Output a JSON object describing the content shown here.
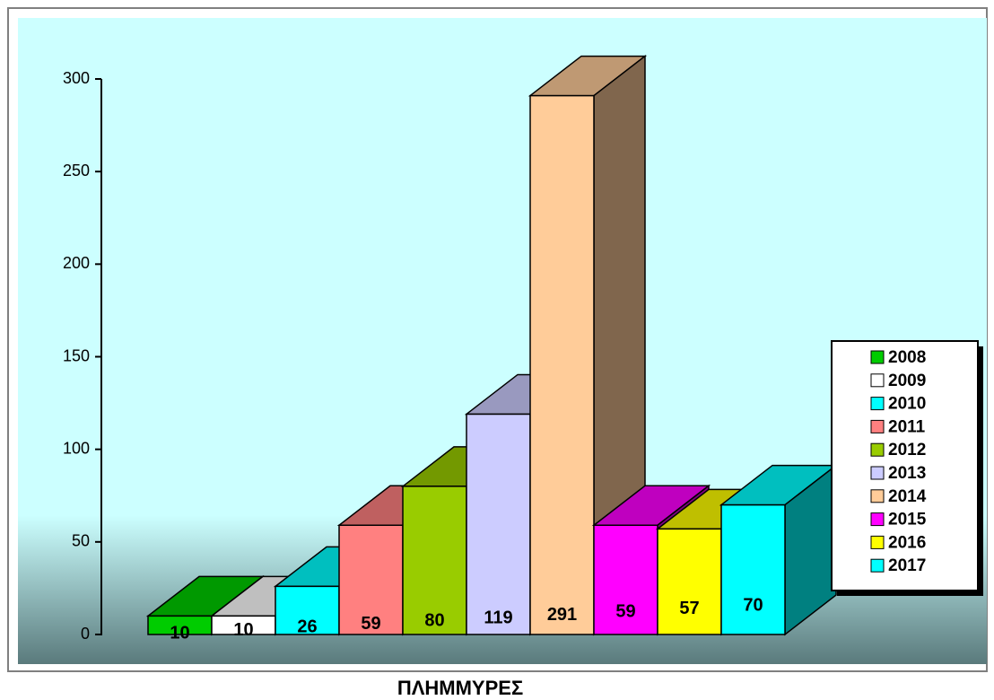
{
  "chart_data": {
    "type": "bar3d",
    "title": "ΠΛΗΜΜΥΡΕΣ",
    "categories": [
      "2008",
      "2009",
      "2010",
      "2011",
      "2012",
      "2013",
      "2014",
      "2015",
      "2016",
      "2017"
    ],
    "values": [
      10,
      10,
      26,
      59,
      80,
      119,
      291,
      59,
      57,
      70
    ],
    "colors": [
      "#00cc00",
      "#ffffff",
      "#00ffff",
      "#ff8080",
      "#99cc00",
      "#ccccff",
      "#ffcc99",
      "#ff00ff",
      "#ffff00",
      "#00ffff"
    ],
    "ylim": [
      0,
      300
    ],
    "yticks": [
      0,
      50,
      100,
      150,
      200,
      250,
      300
    ],
    "legend": "right"
  }
}
